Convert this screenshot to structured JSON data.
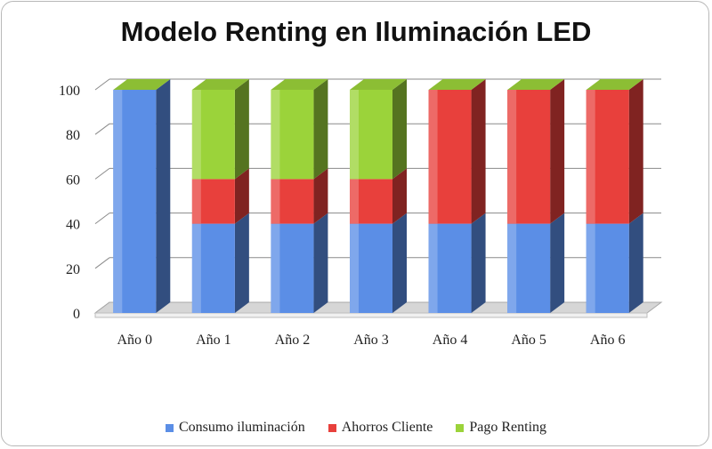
{
  "chart_data": {
    "type": "bar",
    "stacked": true,
    "three_d": true,
    "title": "Modelo Renting en Iluminación LED",
    "categories": [
      "Año 0",
      "Año 1",
      "Año 2",
      "Año 3",
      "Año 4",
      "Año 5",
      "Año 6"
    ],
    "series": [
      {
        "name": "Consumo iluminación",
        "color": "#5b8ee6",
        "values": [
          100,
          40,
          40,
          40,
          40,
          40,
          40
        ]
      },
      {
        "name": "Ahorros Cliente",
        "color": "#e8403c",
        "values": [
          0,
          20,
          20,
          20,
          60,
          60,
          60
        ]
      },
      {
        "name": "Pago Renting",
        "color": "#9bd33a",
        "values": [
          0,
          40,
          40,
          40,
          0,
          0,
          0
        ]
      }
    ],
    "ylim": [
      0,
      100
    ],
    "yticks": [
      "0",
      "20",
      "40",
      "60",
      "80",
      "100"
    ],
    "grid": true,
    "legend_position": "bottom"
  }
}
